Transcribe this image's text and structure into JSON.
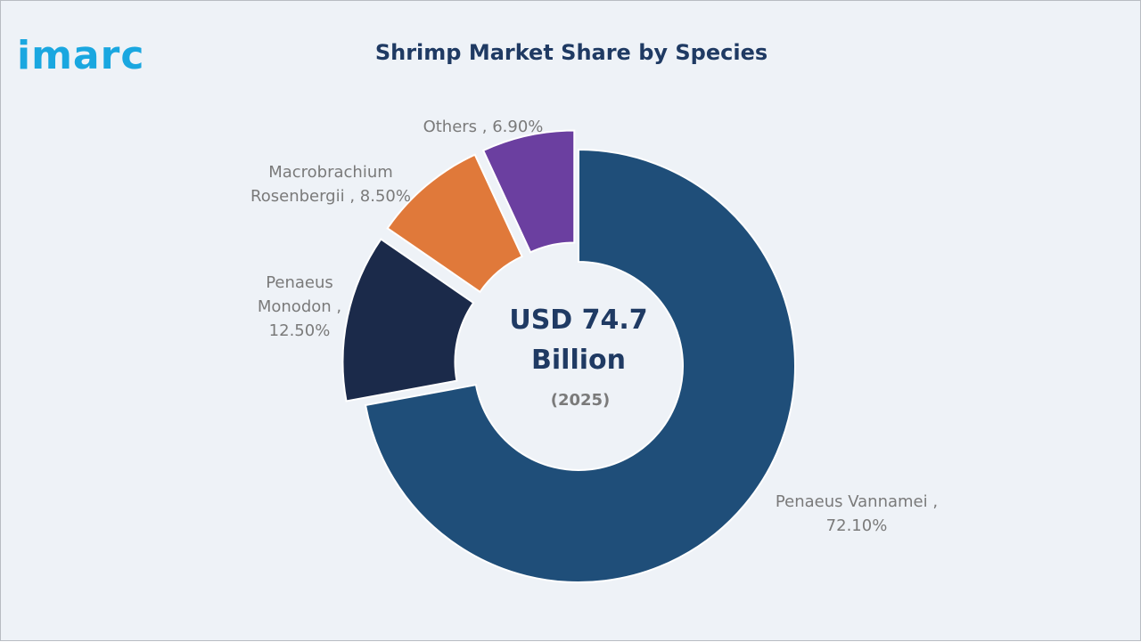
{
  "brand": {
    "logo_text": "imarc",
    "color": "#1aa7e0"
  },
  "chart_data": {
    "type": "pie",
    "variant": "donut",
    "title": "Shrimp Market Share by Species",
    "center_label": [
      "USD 74.7",
      "Billion"
    ],
    "center_sublabel": "(2025)",
    "unit": "%",
    "series": [
      {
        "name": "Penaeus Vannamei",
        "value": 72.1,
        "label_lines": [
          "Penaeus Vannamei ,",
          "72.10%"
        ],
        "color": "#1f4e79",
        "exploded": false
      },
      {
        "name": "Penaeus Monodon",
        "value": 12.5,
        "label_lines": [
          "Penaeus",
          "Monodon ,",
          "12.50%"
        ],
        "color": "#1b2a4a",
        "exploded": true
      },
      {
        "name": "Macrobrachium Rosenbergii",
        "value": 8.5,
        "label_lines": [
          "Macrobrachium",
          "Rosenbergii , 8.50%"
        ],
        "color": "#e0793a",
        "exploded": true
      },
      {
        "name": "Others",
        "value": 6.9,
        "label_lines": [
          "Others , 6.90%"
        ],
        "color": "#6b3fa0",
        "exploded": true
      }
    ]
  }
}
